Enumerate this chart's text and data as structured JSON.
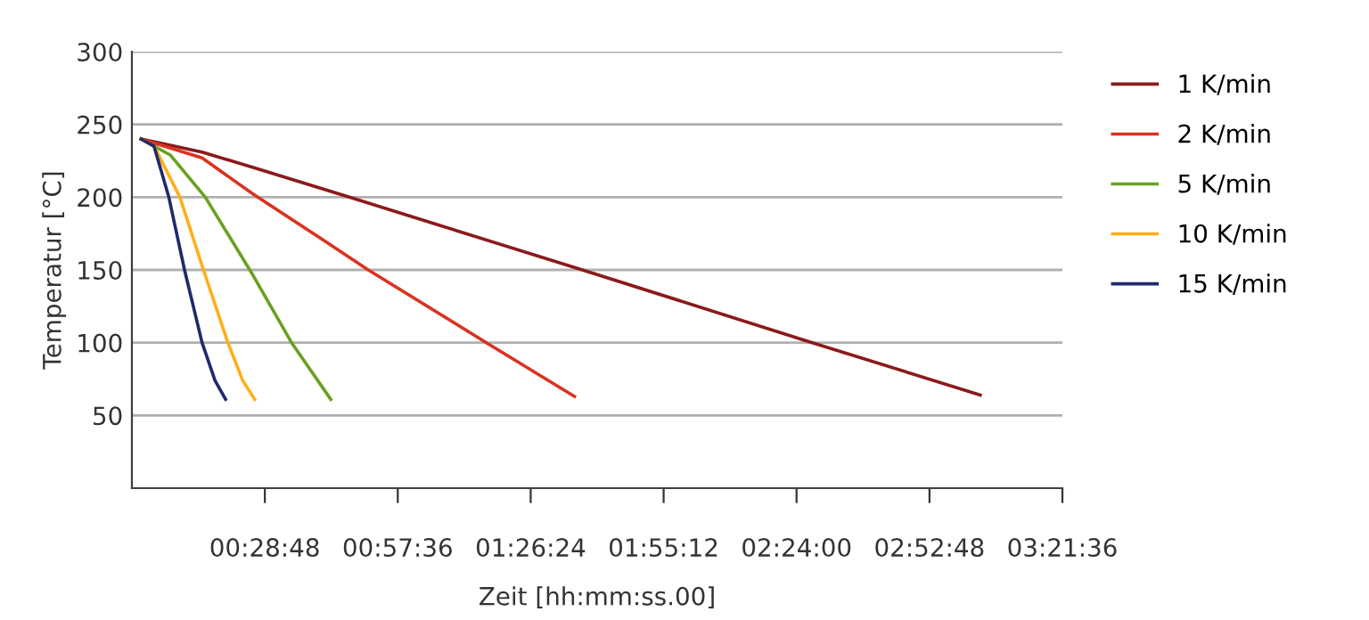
{
  "chart_data": {
    "type": "line",
    "xlabel": "Zeit [hh:mm:ss.00]",
    "ylabel": "Temperatur [°C]",
    "xlim": [
      0,
      201.6
    ],
    "xticks": [
      {
        "value": 28.8,
        "label": "00:28:48"
      },
      {
        "value": 57.6,
        "label": "00:57:36"
      },
      {
        "value": 86.4,
        "label": "01:26:24"
      },
      {
        "value": 115.2,
        "label": "01:55:12"
      },
      {
        "value": 144,
        "label": "02:24:00"
      },
      {
        "value": 172.8,
        "label": "02:52:48"
      },
      {
        "value": 201.6,
        "label": "03:21:36"
      }
    ],
    "ylim": [
      0,
      300
    ],
    "yticks": [
      50,
      100,
      150,
      200,
      250,
      300
    ],
    "grid": "y",
    "legend": "right",
    "marker": "none",
    "line_style": "solid",
    "series": [
      {
        "name": "1 K/min",
        "color": "#8b1a1a",
        "x": [
          2,
          15.2,
          27.7,
          47.1,
          97.6,
          147.4,
          183.8
        ],
        "values": [
          240,
          231,
          219,
          200,
          150,
          100,
          64
        ]
      },
      {
        "name": "2 K/min",
        "color": "#d93320",
        "x": [
          2,
          15.2,
          26.3,
          42.2,
          51.2,
          76.8,
          95.9
        ],
        "values": [
          240,
          227,
          202,
          169,
          150,
          100,
          63
        ]
      },
      {
        "name": "5 K/min",
        "color": "#6aa121",
        "x": [
          2,
          8.3,
          15.9,
          26.3,
          34.6,
          43.1
        ],
        "values": [
          240,
          229,
          200,
          146,
          100,
          61
        ]
      },
      {
        "name": "10 K/min",
        "color": "#ffae1a",
        "x": [
          2,
          4.8,
          10.4,
          15.5,
          20.8,
          24,
          26.6
        ],
        "values": [
          240,
          235,
          200,
          150,
          100,
          74,
          61
        ]
      },
      {
        "name": "15 K/min",
        "color": "#1f2a6b",
        "x": [
          2,
          4.8,
          8,
          11.4,
          15.2,
          18,
          20.3
        ],
        "values": [
          240,
          235,
          200,
          150,
          100,
          74,
          61
        ]
      }
    ]
  }
}
